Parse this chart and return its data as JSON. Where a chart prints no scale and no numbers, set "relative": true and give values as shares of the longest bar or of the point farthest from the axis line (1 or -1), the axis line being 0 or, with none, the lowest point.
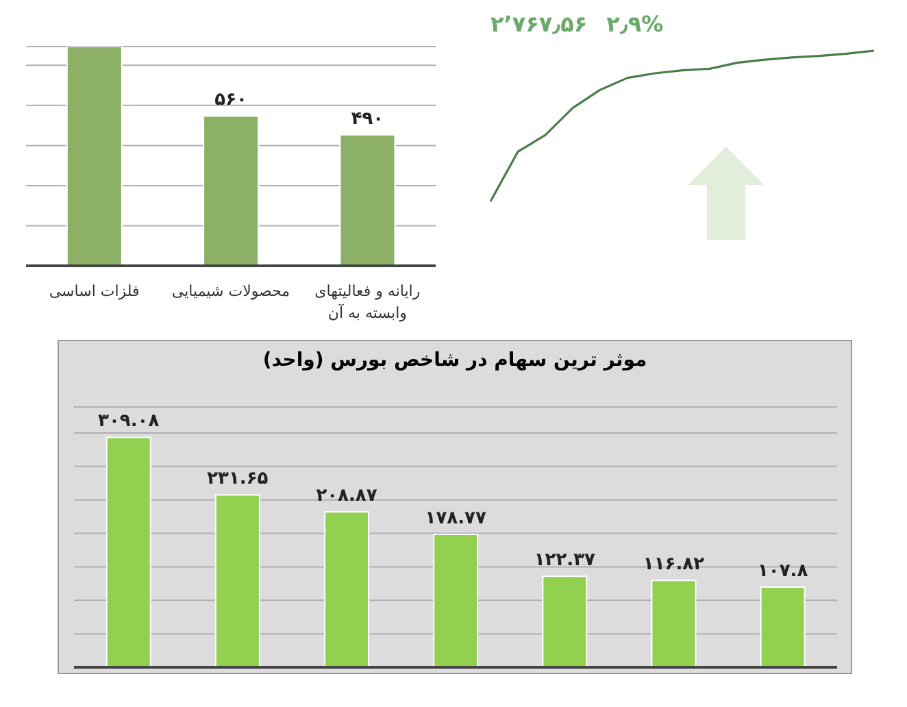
{
  "chart_data": [
    {
      "type": "bar",
      "categories": [
        "فلزات اساسی",
        "محصولات شیمیایی",
        "رایانه و فعالیتهای وابسته به آن"
      ],
      "values": [
        820,
        560,
        490
      ],
      "value_labels": [
        null,
        "۵۶۰",
        "۴۹۰"
      ],
      "color": "#8cb065",
      "ylim": [
        0,
        820
      ],
      "grid": "y",
      "tick_labels": "x"
    },
    {
      "type": "line",
      "relative": true,
      "categories": [
        null,
        null,
        null,
        null,
        null,
        null,
        null,
        null,
        null,
        null,
        null,
        null,
        null,
        null,
        null
      ],
      "values": [
        0,
        0.33,
        0.44,
        0.62,
        0.74,
        0.82,
        0.85,
        0.87,
        0.88,
        0.92,
        0.94,
        0.955,
        0.965,
        0.98,
        1
      ],
      "color": "#4a7d4a",
      "annotations": [
        "۲٬۷۶۷٫۵۶",
        "۲٫۹%"
      ]
    },
    {
      "type": "bar",
      "title": "موثر ترین سهام در شاخص بورس (واحد)",
      "categories": [
        null,
        null,
        null,
        null,
        null,
        null,
        null
      ],
      "values": [
        309.08,
        231.65,
        208.87,
        178.77,
        122.37,
        116.82,
        107.8
      ],
      "value_labels": [
        "۳۰۹.۰۸",
        "۲۳۱.۶۵",
        "۲۰۸.۸۷",
        "۱۷۸.۷۷",
        "۱۲۲.۳۷",
        "۱۱۶.۸۲",
        "۱۰۷.۸"
      ],
      "color": "#92d050",
      "ylim": [
        0,
        350
      ],
      "grid": "y",
      "tick_labels": false
    }
  ]
}
